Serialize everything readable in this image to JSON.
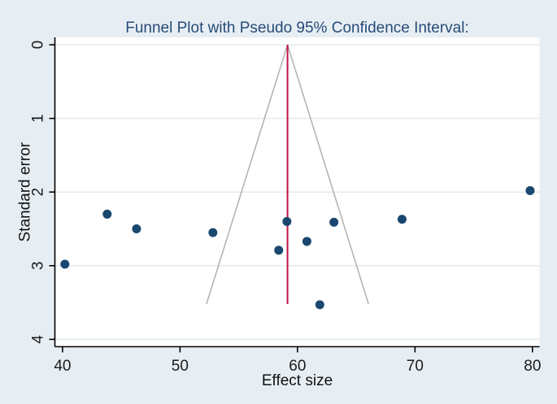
{
  "chart_data": {
    "type": "scatter",
    "subtype": "funnel-plot",
    "title": "Funnel Plot with Pseudo 95% Confidence Interval:",
    "xlabel": "Effect size",
    "ylabel": "Standard error",
    "xlim": [
      39.35,
      80.6
    ],
    "ylim": [
      -0.1,
      4.1
    ],
    "y_axis_inverted": true,
    "grid": true,
    "x_ticks": [
      40,
      50,
      60,
      70,
      80
    ],
    "y_ticks": [
      0,
      1,
      2,
      3,
      4
    ],
    "points": [
      {
        "effect": 40.2,
        "se": 2.98
      },
      {
        "effect": 43.8,
        "se": 2.3
      },
      {
        "effect": 46.3,
        "se": 2.5
      },
      {
        "effect": 52.8,
        "se": 2.55
      },
      {
        "effect": 58.4,
        "se": 2.79
      },
      {
        "effect": 59.1,
        "se": 2.4
      },
      {
        "effect": 60.8,
        "se": 2.67
      },
      {
        "effect": 61.9,
        "se": 3.53
      },
      {
        "effect": 63.1,
        "se": 2.41
      },
      {
        "effect": 68.9,
        "se": 2.37
      },
      {
        "effect": 79.8,
        "se": 1.98
      }
    ],
    "pooled_effect_line": {
      "x": 59.15,
      "se_from": 0,
      "se_to": 3.52
    },
    "funnel": {
      "center": 59.15,
      "z": 1.96,
      "se_max": 3.52
    },
    "legend": null,
    "colors": {
      "background": "#e7eef3",
      "plot_background": "#ffffff",
      "gridline": "#e0eaf0",
      "axis_line": "#000000",
      "marker": "#1a476f",
      "funnel_line": "#b4b4b4",
      "pooled_line": "#c11244",
      "title_text": "#274b78",
      "tick_text": "#1a1a1a"
    }
  }
}
